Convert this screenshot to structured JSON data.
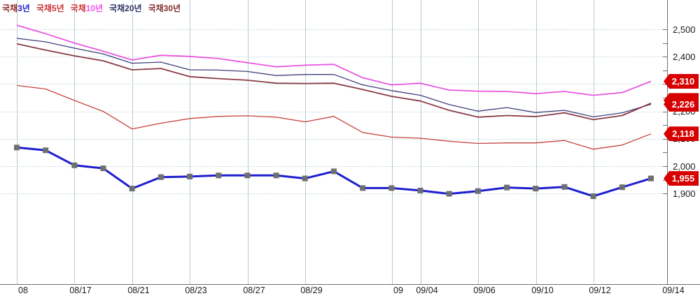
{
  "chart_data": {
    "type": "line",
    "title": "",
    "xlabel": "",
    "ylabel": "",
    "grid": true,
    "legend_position": "top-left",
    "y_axis": {
      "side": "right",
      "labeled_range": [
        1900,
        2500
      ],
      "major_step": 100,
      "minor_tick_step": 50,
      "labels": [
        {
          "value": 2500,
          "text": "2,500"
        },
        {
          "value": 2400,
          "text": "2,400"
        },
        {
          "value": 2300,
          "text": "2,300"
        },
        {
          "value": 2200,
          "text": "2,200"
        },
        {
          "value": 2100,
          "text": "2,100"
        },
        {
          "value": 2000,
          "text": "2,000"
        },
        {
          "value": 1900,
          "text": "1,900"
        }
      ]
    },
    "x_ticks": [
      {
        "px": 24,
        "label": "08"
      },
      {
        "px": 106,
        "label": "08/17"
      },
      {
        "px": 189,
        "label": "08/21"
      },
      {
        "px": 271,
        "label": "08/23"
      },
      {
        "px": 354,
        "label": "08/27"
      },
      {
        "px": 436,
        "label": "08/29"
      },
      {
        "px": 560,
        "label": "09"
      },
      {
        "px": 601,
        "label": "09/04"
      },
      {
        "px": 683,
        "label": "09/06"
      },
      {
        "px": 766,
        "label": "09/10"
      },
      {
        "px": 848,
        "label": "09/12"
      },
      {
        "px": 953,
        "label": "09/14"
      }
    ],
    "series": [
      {
        "name": "국채20년",
        "color": "#3f3f7d",
        "line_width": 1.3,
        "marker": "none",
        "values": [
          2467,
          2454,
          2431,
          2410,
          2376,
          2380,
          2352,
          2351,
          2346,
          2331,
          2335,
          2335,
          2297,
          2276,
          2259,
          2225,
          2201,
          2214,
          2196,
          2204,
          2180,
          2195,
          2226
        ]
      },
      {
        "name": "국채30년",
        "color": "#8a3a46",
        "line_width": 1.8,
        "marker": "none",
        "values": [
          2447,
          2424,
          2403,
          2385,
          2352,
          2357,
          2327,
          2320,
          2314,
          2303,
          2302,
          2303,
          2280,
          2255,
          2238,
          2204,
          2179,
          2185,
          2181,
          2195,
          2170,
          2185,
          2230
        ]
      },
      {
        "name": "국채10년",
        "color": "#e957e0",
        "line_width": 1.8,
        "marker": "none",
        "values": [
          2515,
          2484,
          2450,
          2420,
          2388,
          2405,
          2401,
          2393,
          2378,
          2363,
          2369,
          2372,
          2323,
          2297,
          2303,
          2278,
          2274,
          2273,
          2265,
          2273,
          2259,
          2269,
          2310
        ]
      },
      {
        "name": "국채5년",
        "color": "#c5433f",
        "line_width": 1.3,
        "marker": "none",
        "values": [
          2295,
          2282,
          2240,
          2200,
          2136,
          2157,
          2174,
          2182,
          2184,
          2179,
          2162,
          2182,
          2123,
          2106,
          2102,
          2091,
          2083,
          2085,
          2085,
          2094,
          2062,
          2077,
          2118
        ]
      },
      {
        "name": "국채3년",
        "color": "#1e1ecf",
        "line_width": 3,
        "marker": "square",
        "marker_color": "#6f6f6f",
        "marker_size": 8,
        "values": [
          2068,
          2058,
          2003,
          1992,
          1918,
          1960,
          1962,
          1966,
          1966,
          1966,
          1955,
          1981,
          1920,
          1920,
          1911,
          1899,
          1909,
          1922,
          1918,
          1924,
          1890,
          1923,
          1955
        ]
      }
    ],
    "value_badges": [
      {
        "text": "2,310",
        "value": 2310,
        "color": "#d60000"
      },
      {
        "text": "",
        "value": 2240,
        "color": "#d60000"
      },
      {
        "text": "2,226",
        "value": 2226,
        "color": "#d60000"
      },
      {
        "text": "2,118",
        "value": 2118,
        "color": "#d60000"
      },
      {
        "text": "1,955",
        "value": 1955,
        "color": "#d60000"
      }
    ],
    "colors": {
      "vertical_grid": "#b9c9d6",
      "horizontal_grid_dotted": "#a5c6ca",
      "axis": "#6f6f6f",
      "tick": "#6f6f6f",
      "badge_red": "#d60000"
    }
  },
  "legend": {
    "items": [
      {
        "parts": [
          {
            "text": "국채",
            "color": "#8b2525"
          },
          {
            "text": "3년",
            "color": "#2626cc"
          }
        ]
      },
      {
        "parts": [
          {
            "text": "국채5년",
            "color": "#cc3333"
          }
        ]
      },
      {
        "parts": [
          {
            "text": "국채",
            "color": "#cc3333"
          },
          {
            "text": "10년",
            "color": "#ee55ee"
          }
        ]
      },
      {
        "parts": [
          {
            "text": "국채20년",
            "color": "#303065"
          }
        ]
      },
      {
        "parts": [
          {
            "text": "국채30년",
            "color": "#823030"
          }
        ]
      }
    ]
  }
}
